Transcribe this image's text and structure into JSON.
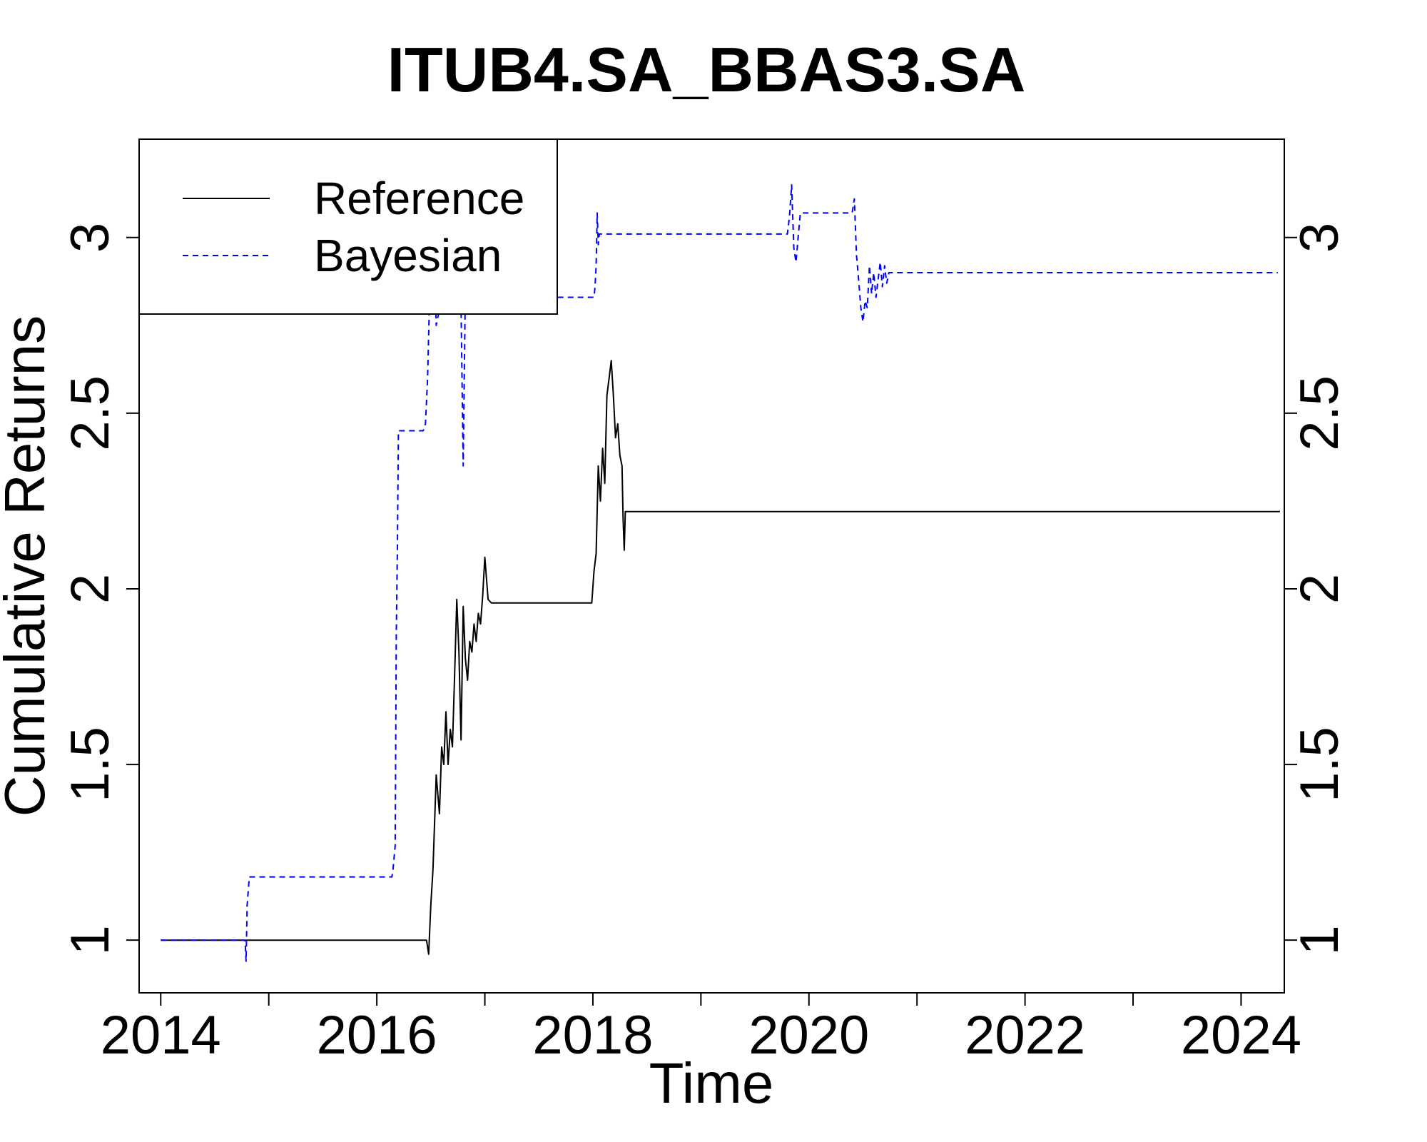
{
  "chart_data": {
    "type": "line",
    "title": "ITUB4.SA_BBAS3.SA",
    "xlabel": "Time",
    "ylabel": "Cumulative Returns",
    "xlim": [
      2013.8,
      2024.4
    ],
    "ylim": [
      0.85,
      3.28
    ],
    "x_ticks": [
      2014,
      2015,
      2016,
      2017,
      2018,
      2019,
      2020,
      2021,
      2022,
      2023,
      2024
    ],
    "x_tick_labels": [
      "2014",
      "2016",
      "2018",
      "2020",
      "2022",
      "2024"
    ],
    "y_ticks": [
      1,
      1.5,
      2,
      2.5,
      3
    ],
    "y_tick_labels": [
      "1",
      "1.5",
      "2",
      "2.5",
      "3"
    ],
    "grid": false,
    "legend_position": "top-left",
    "series": [
      {
        "name": "Reference",
        "color": "#000000",
        "dash": "solid",
        "x": [
          2014.0,
          2016.46,
          2016.48,
          2016.5,
          2016.52,
          2016.55,
          2016.58,
          2016.6,
          2016.62,
          2016.64,
          2016.66,
          2016.68,
          2016.7,
          2016.72,
          2016.74,
          2016.76,
          2016.78,
          2016.8,
          2016.82,
          2016.84,
          2016.86,
          2016.88,
          2016.9,
          2016.92,
          2016.94,
          2016.96,
          2016.98,
          2017.0,
          2017.03,
          2017.06,
          2017.09,
          2017.12,
          2017.14,
          2017.5,
          2017.99,
          2018.01,
          2018.03,
          2018.05,
          2018.07,
          2018.09,
          2018.11,
          2018.13,
          2018.15,
          2018.17,
          2018.19,
          2018.21,
          2018.23,
          2018.25,
          2018.27,
          2018.28,
          2018.29,
          2018.3,
          2018.31,
          2018.32,
          2024.36
        ],
        "y": [
          1.0,
          1.0,
          0.96,
          1.1,
          1.2,
          1.47,
          1.36,
          1.55,
          1.5,
          1.65,
          1.5,
          1.6,
          1.55,
          1.75,
          1.97,
          1.82,
          1.57,
          1.95,
          1.8,
          1.74,
          1.85,
          1.82,
          1.9,
          1.85,
          1.93,
          1.9,
          1.98,
          2.09,
          1.97,
          1.96,
          1.96,
          1.96,
          1.96,
          1.96,
          1.96,
          2.05,
          2.1,
          2.35,
          2.25,
          2.4,
          2.3,
          2.55,
          2.6,
          2.65,
          2.55,
          2.43,
          2.47,
          2.38,
          2.35,
          2.2,
          2.11,
          2.22,
          2.22,
          2.22,
          2.22
        ]
      },
      {
        "name": "Bayesian",
        "color": "#0000ff",
        "dash": "dashed",
        "x": [
          2014.0,
          2014.78,
          2014.79,
          2014.8,
          2014.82,
          2015.5,
          2016.14,
          2016.15,
          2016.17,
          2016.18,
          2016.19,
          2016.2,
          2016.22,
          2016.4,
          2016.43,
          2016.45,
          2016.47,
          2016.49,
          2016.51,
          2016.53,
          2016.55,
          2016.57,
          2016.6,
          2016.62,
          2016.75,
          2016.78,
          2016.8,
          2016.82,
          2016.84,
          2016.86,
          2016.9,
          2017.5,
          2018.01,
          2018.02,
          2018.03,
          2018.04,
          2018.05,
          2018.06,
          2018.08,
          2019.0,
          2019.8,
          2019.82,
          2019.84,
          2019.86,
          2019.88,
          2019.9,
          2019.92,
          2020.2,
          2020.4,
          2020.42,
          2020.44,
          2020.46,
          2020.48,
          2020.5,
          2020.52,
          2020.54,
          2020.56,
          2020.58,
          2020.6,
          2020.62,
          2020.64,
          2020.66,
          2020.68,
          2020.7,
          2020.72,
          2020.74,
          2020.76,
          2020.78,
          2021.5,
          2022.5,
          2024.34
        ],
        "y": [
          1.0,
          1.0,
          0.94,
          1.1,
          1.18,
          1.18,
          1.18,
          1.2,
          1.27,
          1.87,
          2.1,
          2.45,
          2.45,
          2.45,
          2.45,
          2.47,
          2.6,
          2.85,
          3.18,
          2.95,
          2.75,
          2.78,
          2.81,
          2.81,
          2.81,
          2.8,
          2.35,
          2.87,
          2.8,
          2.83,
          2.83,
          2.83,
          2.83,
          2.86,
          2.92,
          3.07,
          2.98,
          3.01,
          3.01,
          3.01,
          3.01,
          3.06,
          3.15,
          2.97,
          2.93,
          3.0,
          3.07,
          3.07,
          3.07,
          3.11,
          2.95,
          2.88,
          2.8,
          2.76,
          2.82,
          2.8,
          2.92,
          2.84,
          2.9,
          2.83,
          2.88,
          2.93,
          2.86,
          2.92,
          2.87,
          2.9,
          2.9,
          2.9,
          2.9,
          2.9,
          2.9
        ]
      }
    ]
  }
}
